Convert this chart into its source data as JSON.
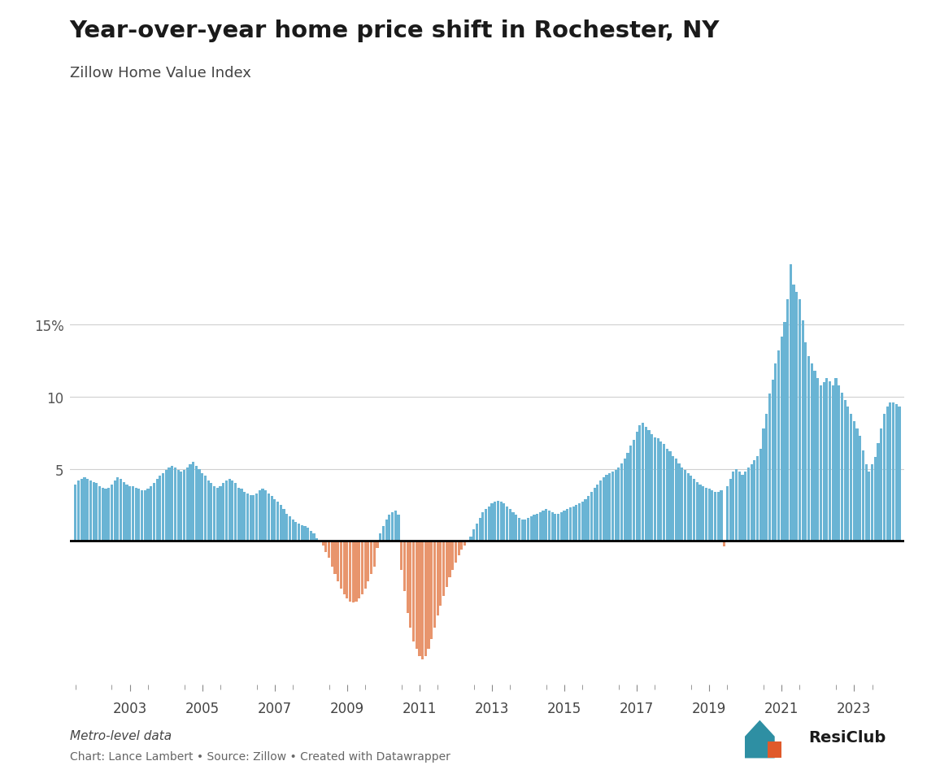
{
  "title": "Year-over-year home price shift in Rochester, NY",
  "subtitle": "Zillow Home Value Index",
  "footer_left": "Metro-level data",
  "footer_right": "Chart: Lance Lambert • Source: Zillow • Created with Datawrapper",
  "background_color": "#ffffff",
  "bar_color_pos": "#6ab4d4",
  "bar_color_neg": "#e8956d",
  "xtick_years": [
    2003,
    2005,
    2007,
    2009,
    2011,
    2013,
    2015,
    2017,
    2019,
    2021,
    2023
  ],
  "year_start": 2002,
  "values": [
    3.9,
    4.2,
    4.3,
    4.4,
    4.3,
    4.2,
    4.1,
    4.0,
    3.8,
    3.7,
    3.6,
    3.7,
    3.9,
    4.2,
    4.4,
    4.3,
    4.1,
    3.9,
    3.8,
    3.8,
    3.7,
    3.6,
    3.5,
    3.5,
    3.6,
    3.8,
    4.0,
    4.3,
    4.5,
    4.7,
    4.9,
    5.1,
    5.2,
    5.1,
    4.9,
    4.8,
    4.9,
    5.1,
    5.3,
    5.5,
    5.2,
    5.0,
    4.7,
    4.5,
    4.2,
    4.0,
    3.8,
    3.7,
    3.8,
    4.0,
    4.2,
    4.3,
    4.2,
    4.0,
    3.7,
    3.6,
    3.4,
    3.3,
    3.2,
    3.2,
    3.3,
    3.5,
    3.6,
    3.5,
    3.3,
    3.1,
    2.9,
    2.7,
    2.5,
    2.2,
    1.9,
    1.7,
    1.5,
    1.3,
    1.2,
    1.1,
    1.0,
    0.9,
    0.7,
    0.5,
    0.2,
    -0.1,
    -0.3,
    -0.8,
    -1.2,
    -1.8,
    -2.3,
    -2.8,
    -3.3,
    -3.7,
    -4.0,
    -4.2,
    -4.3,
    -4.2,
    -4.0,
    -3.7,
    -3.3,
    -2.8,
    -2.3,
    -1.8,
    -0.5,
    0.5,
    1.0,
    1.5,
    1.8,
    2.0,
    2.1,
    1.8,
    -2.0,
    -3.5,
    -5.0,
    -6.0,
    -7.0,
    -7.5,
    -8.0,
    -8.2,
    -8.0,
    -7.5,
    -6.8,
    -6.0,
    -5.2,
    -4.5,
    -3.8,
    -3.2,
    -2.5,
    -2.0,
    -1.5,
    -1.0,
    -0.6,
    -0.3,
    0.0,
    0.3,
    0.8,
    1.2,
    1.6,
    2.0,
    2.2,
    2.4,
    2.6,
    2.7,
    2.8,
    2.7,
    2.6,
    2.4,
    2.2,
    2.0,
    1.8,
    1.6,
    1.5,
    1.5,
    1.6,
    1.7,
    1.8,
    1.9,
    2.0,
    2.1,
    2.2,
    2.1,
    2.0,
    1.9,
    1.9,
    2.0,
    2.1,
    2.2,
    2.3,
    2.4,
    2.5,
    2.6,
    2.7,
    2.9,
    3.1,
    3.4,
    3.7,
    3.9,
    4.2,
    4.4,
    4.6,
    4.7,
    4.8,
    4.9,
    5.1,
    5.4,
    5.7,
    6.1,
    6.6,
    7.0,
    7.6,
    8.0,
    8.2,
    7.9,
    7.7,
    7.4,
    7.2,
    7.1,
    6.9,
    6.7,
    6.4,
    6.2,
    5.9,
    5.7,
    5.4,
    5.1,
    4.9,
    4.7,
    4.5,
    4.3,
    4.1,
    3.9,
    3.8,
    3.7,
    3.6,
    3.5,
    3.4,
    3.4,
    3.5,
    -0.4,
    3.8,
    4.3,
    4.8,
    5.0,
    4.8,
    4.6,
    4.8,
    5.1,
    5.3,
    5.6,
    5.9,
    6.4,
    7.8,
    8.8,
    10.2,
    11.2,
    12.3,
    13.2,
    14.2,
    15.2,
    16.8,
    19.2,
    17.8,
    17.3,
    16.8,
    15.3,
    13.8,
    12.8,
    12.3,
    11.8,
    11.3,
    10.8,
    11.0,
    11.3,
    11.1,
    10.8,
    11.3,
    10.8,
    10.3,
    9.8,
    9.3,
    8.8,
    8.3,
    7.8,
    7.3,
    6.3,
    5.3,
    4.8,
    5.3,
    5.8,
    6.8,
    7.8,
    8.8,
    9.3,
    9.6,
    9.6,
    9.5,
    9.3
  ]
}
